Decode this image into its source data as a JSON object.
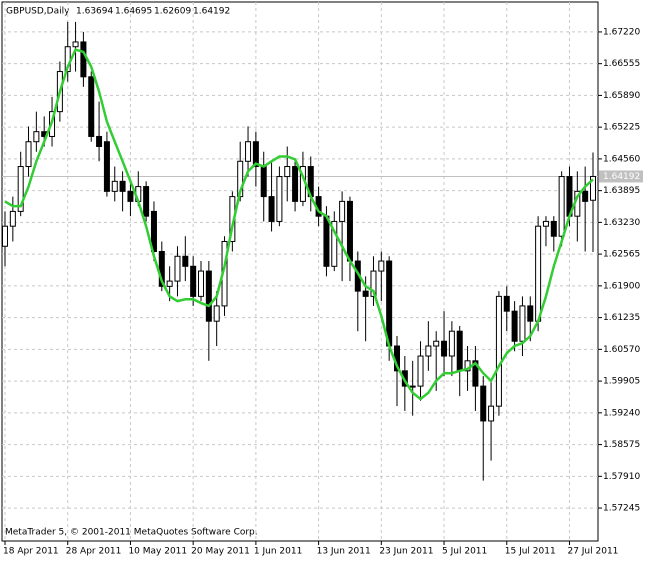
{
  "chart_data": {
    "type": "candlestick",
    "title": "GBPUSD,Daily",
    "footer": "MetaTrader 5, © 2001-2011 MetaQuotes Software Corp.",
    "categories": [
      "18 Apr 2011",
      null,
      null,
      null,
      null,
      null,
      null,
      null,
      "28 Apr 2011",
      null,
      null,
      null,
      null,
      null,
      null,
      null,
      "10 May 2011",
      null,
      null,
      null,
      null,
      null,
      null,
      null,
      "20 May 2011",
      null,
      null,
      null,
      null,
      null,
      null,
      null,
      "1 Jun 2011",
      null,
      null,
      null,
      null,
      null,
      null,
      null,
      "13 Jun 2011",
      null,
      null,
      null,
      null,
      null,
      null,
      null,
      "23 Jun 2011",
      null,
      null,
      null,
      null,
      null,
      null,
      null,
      "5 Jul 2011",
      null,
      null,
      null,
      null,
      null,
      null,
      null,
      "15 Jul 2011",
      null,
      null,
      null,
      null,
      null,
      null,
      null,
      "27 Jul 2011",
      null,
      null,
      null
    ],
    "ohlc": [
      [
        1.6273,
        1.6346,
        1.6231,
        1.6315
      ],
      [
        1.6315,
        1.6377,
        1.6283,
        1.6346
      ],
      [
        1.6346,
        1.6471,
        1.6336,
        1.644
      ],
      [
        1.644,
        1.6524,
        1.6419,
        1.6492
      ],
      [
        1.6492,
        1.6555,
        1.6471,
        1.6513
      ],
      [
        1.6513,
        1.6545,
        1.6482,
        1.6503
      ],
      [
        1.6503,
        1.6586,
        1.6482,
        1.6555
      ],
      [
        1.6555,
        1.666,
        1.6534,
        1.6639
      ],
      [
        1.6639,
        1.6743,
        1.6618,
        1.6691
      ],
      [
        1.6691,
        1.6743,
        1.6639,
        1.6701
      ],
      [
        1.6701,
        1.6722,
        1.6607,
        1.6628
      ],
      [
        1.6628,
        1.6639,
        1.6492,
        1.6503
      ],
      [
        1.6503,
        1.6576,
        1.6451,
        1.6482
      ],
      [
        1.6492,
        1.6513,
        1.6377,
        1.6388
      ],
      [
        1.6388,
        1.644,
        1.6367,
        1.6409
      ],
      [
        1.6409,
        1.643,
        1.6346,
        1.6388
      ],
      [
        1.6388,
        1.6409,
        1.6336,
        1.6367
      ],
      [
        1.6367,
        1.643,
        1.6357,
        1.6398
      ],
      [
        1.6398,
        1.6409,
        1.6325,
        1.6336
      ],
      [
        1.6346,
        1.6367,
        1.6242,
        1.6262
      ],
      [
        1.6262,
        1.6283,
        1.6179,
        1.6189
      ],
      [
        1.6189,
        1.6231,
        1.6158,
        1.62
      ],
      [
        1.62,
        1.6273,
        1.6168,
        1.6252
      ],
      [
        1.6252,
        1.6294,
        1.62,
        1.6231
      ],
      [
        1.6231,
        1.6252,
        1.6148,
        1.6168
      ],
      [
        1.6168,
        1.6242,
        1.6158,
        1.6221
      ],
      [
        1.6221,
        1.6242,
        1.6033,
        1.6116
      ],
      [
        1.6116,
        1.6179,
        1.6064,
        1.6148
      ],
      [
        1.6148,
        1.6294,
        1.6127,
        1.6283
      ],
      [
        1.6283,
        1.6388,
        1.6262,
        1.6377
      ],
      [
        1.6377,
        1.6492,
        1.6367,
        1.6451
      ],
      [
        1.6451,
        1.6524,
        1.6419,
        1.6492
      ],
      [
        1.6492,
        1.6513,
        1.6398,
        1.644
      ],
      [
        1.644,
        1.6471,
        1.6325,
        1.6377
      ],
      [
        1.6377,
        1.6451,
        1.6304,
        1.6325
      ],
      [
        1.6325,
        1.644,
        1.6315,
        1.6419
      ],
      [
        1.6419,
        1.6482,
        1.6367,
        1.644
      ],
      [
        1.644,
        1.6451,
        1.6346,
        1.6367
      ],
      [
        1.6367,
        1.6471,
        1.6357,
        1.644
      ],
      [
        1.644,
        1.6461,
        1.6346,
        1.6377
      ],
      [
        1.6377,
        1.6398,
        1.6315,
        1.6336
      ],
      [
        1.6336,
        1.6357,
        1.621,
        1.6231
      ],
      [
        1.6231,
        1.6346,
        1.6221,
        1.6325
      ],
      [
        1.6325,
        1.6388,
        1.62,
        1.6367
      ],
      [
        1.6367,
        1.6377,
        1.62,
        1.6242
      ],
      [
        1.6242,
        1.6262,
        1.6095,
        1.6179
      ],
      [
        1.6179,
        1.621,
        1.6074,
        1.6168
      ],
      [
        1.6168,
        1.6252,
        1.6148,
        1.6221
      ],
      [
        1.6221,
        1.6262,
        1.6158,
        1.6242
      ],
      [
        1.6242,
        1.6252,
        1.6033,
        1.6064
      ],
      [
        1.6064,
        1.6085,
        1.5938,
        1.6012
      ],
      [
        1.6012,
        1.6043,
        1.5928,
        1.598
      ],
      [
        1.598,
        1.6033,
        1.5918,
        1.598
      ],
      [
        1.598,
        1.6074,
        1.5949,
        1.6043
      ],
      [
        1.6043,
        1.6116,
        1.6012,
        1.6064
      ],
      [
        1.6064,
        1.6095,
        1.597,
        1.6074
      ],
      [
        1.6074,
        1.6137,
        1.6001,
        1.6043
      ],
      [
        1.6043,
        1.6116,
        1.6001,
        1.6095
      ],
      [
        1.6095,
        1.6106,
        1.5959,
        1.6012
      ],
      [
        1.6012,
        1.6064,
        1.597,
        1.6033
      ],
      [
        1.6033,
        1.6064,
        1.5928,
        1.598
      ],
      [
        1.598,
        1.6001,
        1.5782,
        1.5907
      ],
      [
        1.5907,
        1.5991,
        1.5824,
        1.5938
      ],
      [
        1.5938,
        1.6179,
        1.5918,
        1.6168
      ],
      [
        1.6168,
        1.6189,
        1.6095,
        1.6137
      ],
      [
        1.6137,
        1.6158,
        1.6053,
        1.6074
      ],
      [
        1.6074,
        1.6168,
        1.6043,
        1.6148
      ],
      [
        1.6148,
        1.6168,
        1.6074,
        1.6116
      ],
      [
        1.6116,
        1.6336,
        1.6095,
        1.6315
      ],
      [
        1.6315,
        1.6336,
        1.6273,
        1.6325
      ],
      [
        1.6325,
        1.6336,
        1.6262,
        1.6294
      ],
      [
        1.6294,
        1.643,
        1.6273,
        1.6419
      ],
      [
        1.6419,
        1.644,
        1.6315,
        1.6336
      ],
      [
        1.6336,
        1.643,
        1.6283,
        1.6388
      ],
      [
        1.6388,
        1.644,
        1.6262,
        1.6367
      ],
      [
        1.63694,
        1.64695,
        1.62609,
        1.64192
      ]
    ],
    "ma": {
      "color": "#32cd32",
      "values": [
        1.6367,
        1.6357,
        1.6357,
        1.6398,
        1.6451,
        1.6492,
        1.6534,
        1.6597,
        1.6649,
        1.6685,
        1.668,
        1.6649,
        1.6597,
        1.6534,
        1.6492,
        1.6451,
        1.6409,
        1.6367,
        1.6315,
        1.6252,
        1.62,
        1.6168,
        1.6158,
        1.6162,
        1.6162,
        1.6154,
        1.6148,
        1.6168,
        1.6231,
        1.6315,
        1.6388,
        1.643,
        1.6446,
        1.644,
        1.6451,
        1.6461,
        1.6461,
        1.6455,
        1.6419,
        1.6377,
        1.6346,
        1.6336,
        1.6304,
        1.6273,
        1.6242,
        1.6217,
        1.6189,
        1.6179,
        1.6127,
        1.6064,
        1.6022,
        1.5991,
        1.5966,
        1.5953,
        1.5966,
        1.5991,
        1.6007,
        1.6007,
        1.6012,
        1.6016,
        1.6028,
        1.6007,
        1.5991,
        1.6022,
        1.6049,
        1.6064,
        1.607,
        1.6085,
        1.6116,
        1.6168,
        1.6231,
        1.6283,
        1.6336,
        1.6377,
        1.6398,
        1.6413
      ]
    },
    "ylim": [
      1.56555,
      1.67847
    ],
    "yticks": [
      {
        "value": 1.6722,
        "label": "1.67220"
      },
      {
        "value": 1.66555,
        "label": "1.66555"
      },
      {
        "value": 1.6589,
        "label": "1.65890"
      },
      {
        "value": 1.65225,
        "label": "1.65225"
      },
      {
        "value": 1.6456,
        "label": "1.64560"
      },
      {
        "value": 1.63895,
        "label": "1.63895"
      },
      {
        "value": 1.6323,
        "label": "1.63230"
      },
      {
        "value": 1.62565,
        "label": "1.62565"
      },
      {
        "value": 1.619,
        "label": "1.61900"
      },
      {
        "value": 1.61235,
        "label": "1.61235"
      },
      {
        "value": 1.6057,
        "label": "1.60570"
      },
      {
        "value": 1.59905,
        "label": "1.59905"
      },
      {
        "value": 1.5924,
        "label": "1.59240"
      },
      {
        "value": 1.58575,
        "label": "1.58575"
      },
      {
        "value": 1.5791,
        "label": "1.57910"
      },
      {
        "value": 1.57245,
        "label": "1.57245"
      }
    ],
    "grid": true
  }
}
